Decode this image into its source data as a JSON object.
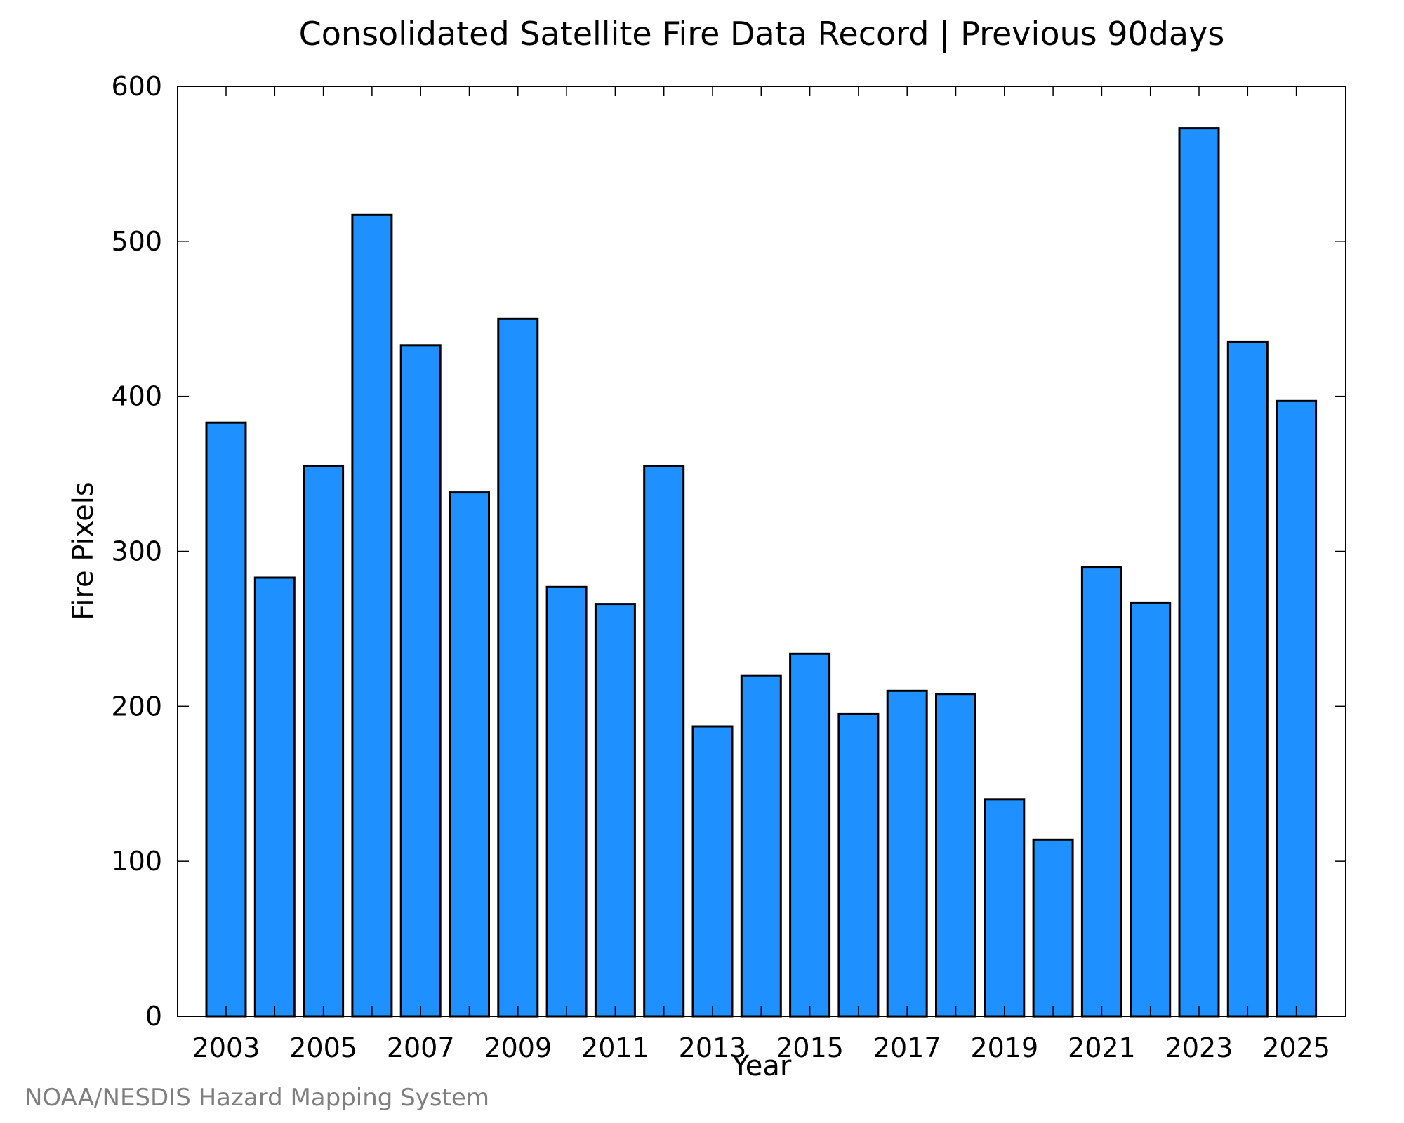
{
  "chart_data": {
    "type": "bar",
    "title": "Consolidated Satellite Fire Data Record | Previous 90days",
    "xlabel": "Year",
    "ylabel": "Fire Pixels",
    "categories": [
      "2003",
      "2004",
      "2005",
      "2006",
      "2007",
      "2008",
      "2009",
      "2010",
      "2011",
      "2012",
      "2013",
      "2014",
      "2015",
      "2016",
      "2017",
      "2018",
      "2019",
      "2020",
      "2021",
      "2022",
      "2023",
      "2024",
      "2025"
    ],
    "values": [
      383,
      283,
      355,
      517,
      433,
      338,
      450,
      277,
      266,
      355,
      187,
      220,
      234,
      195,
      210,
      208,
      140,
      114,
      290,
      267,
      573,
      435,
      397
    ],
    "x_tick_labels": [
      "2003",
      "2005",
      "2007",
      "2009",
      "2011",
      "2013",
      "2015",
      "2017",
      "2019",
      "2021",
      "2023",
      "2025"
    ],
    "y_ticks": [
      "0",
      "100",
      "200",
      "300",
      "400",
      "500",
      "600"
    ],
    "ylim": [
      0,
      600
    ],
    "bar_color": "#1e90ff",
    "grid": false
  },
  "footer": {
    "credit": "NOAA/NESDIS Hazard Mapping System"
  }
}
